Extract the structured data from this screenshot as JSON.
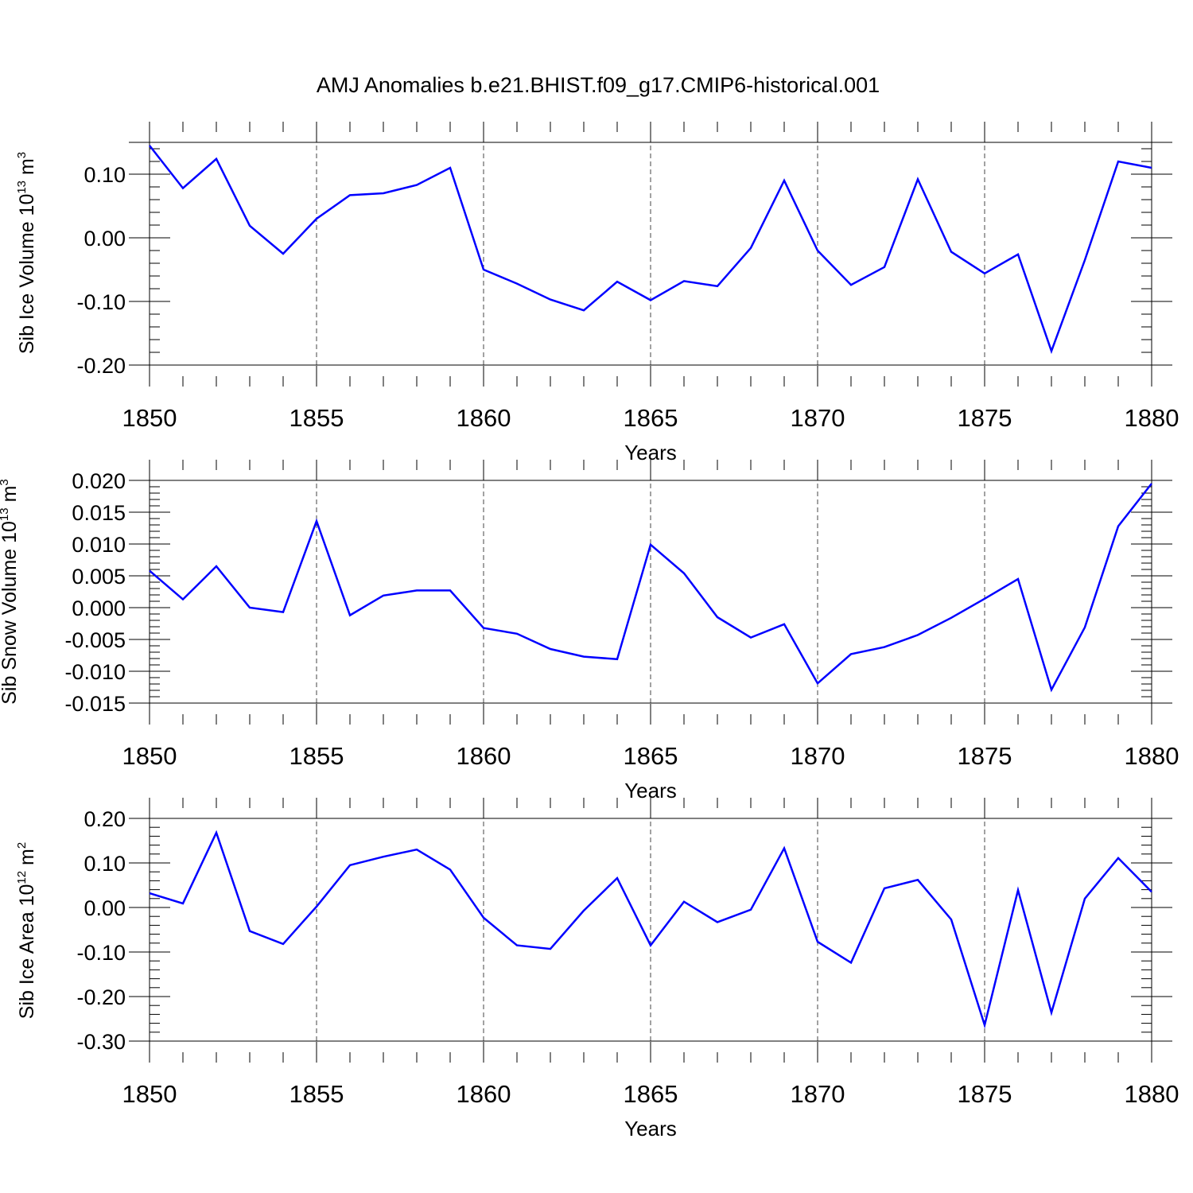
{
  "title": "AMJ Anomalies b.e21.BHIST.f09_g17.CMIP6-historical.001",
  "line_color": "#0000ff",
  "chart_data": [
    {
      "type": "line",
      "ylabel": "Sib Ice Volume 10",
      "ylabel_exp": "13",
      "ylabel_unit": " m",
      "ylabel_unit_exp": "3",
      "xlabel": "Years",
      "xlim": [
        1850,
        1880
      ],
      "ylim": [
        -0.2,
        0.15
      ],
      "x_ticks": [
        "1850",
        "1855",
        "1860",
        "1865",
        "1870",
        "1875",
        "1880"
      ],
      "y_ticks": [
        "0.10",
        "0.00",
        "-0.10",
        "-0.20"
      ],
      "y_tick_values": [
        0.1,
        0.0,
        -0.1,
        -0.2
      ],
      "y_minor_step": 0.02,
      "x": [
        1850,
        1851,
        1852,
        1853,
        1854,
        1855,
        1856,
        1857,
        1858,
        1859,
        1860,
        1861,
        1862,
        1863,
        1864,
        1865,
        1866,
        1867,
        1868,
        1869,
        1870,
        1871,
        1872,
        1873,
        1874,
        1875,
        1876,
        1877,
        1878,
        1879,
        1880
      ],
      "values": [
        0.145,
        0.078,
        0.124,
        0.019,
        -0.025,
        0.03,
        0.067,
        0.07,
        0.083,
        0.11,
        -0.05,
        -0.072,
        -0.097,
        -0.114,
        -0.069,
        -0.098,
        -0.068,
        -0.076,
        -0.016,
        0.09,
        -0.02,
        -0.074,
        -0.046,
        0.092,
        -0.022,
        -0.056,
        -0.026,
        -0.178,
        -0.035,
        0.12,
        0.11
      ]
    },
    {
      "type": "line",
      "ylabel": "Sib Snow Volume 10",
      "ylabel_exp": "13",
      "ylabel_unit": " m",
      "ylabel_unit_exp": "3",
      "xlabel": "Years",
      "xlim": [
        1850,
        1880
      ],
      "ylim": [
        -0.015,
        0.02
      ],
      "x_ticks": [
        "1850",
        "1855",
        "1860",
        "1865",
        "1870",
        "1875",
        "1880"
      ],
      "y_ticks": [
        "0.020",
        "0.015",
        "0.010",
        "0.005",
        "0.000",
        "-0.005",
        "-0.010",
        "-0.015"
      ],
      "y_tick_values": [
        0.02,
        0.015,
        0.01,
        0.005,
        0.0,
        -0.005,
        -0.01,
        -0.015
      ],
      "y_minor_step": 0.001,
      "x": [
        1850,
        1851,
        1852,
        1853,
        1854,
        1855,
        1856,
        1857,
        1858,
        1859,
        1860,
        1861,
        1862,
        1863,
        1864,
        1865,
        1866,
        1867,
        1868,
        1869,
        1870,
        1871,
        1872,
        1873,
        1874,
        1875,
        1876,
        1877,
        1878,
        1879,
        1880
      ],
      "values": [
        0.0058,
        0.0013,
        0.0065,
        0.0,
        -0.0007,
        0.0136,
        -0.0012,
        0.0019,
        0.0027,
        0.0027,
        -0.0032,
        -0.0041,
        -0.0065,
        -0.0077,
        -0.0081,
        0.0099,
        0.0054,
        -0.0015,
        -0.0047,
        -0.0026,
        -0.0119,
        -0.0073,
        -0.0062,
        -0.0043,
        -0.0016,
        0.0014,
        0.0045,
        -0.0129,
        -0.0031,
        0.0128,
        0.0195
      ]
    },
    {
      "type": "line",
      "ylabel": "Sib Ice Area 10",
      "ylabel_exp": "12",
      "ylabel_unit": " m",
      "ylabel_unit_exp": "2",
      "xlabel": "Years",
      "xlim": [
        1850,
        1880
      ],
      "ylim": [
        -0.3,
        0.2
      ],
      "x_ticks": [
        "1850",
        "1855",
        "1860",
        "1865",
        "1870",
        "1875",
        "1880"
      ],
      "y_ticks": [
        "0.20",
        "0.10",
        "0.00",
        "-0.10",
        "-0.20",
        "-0.30"
      ],
      "y_tick_values": [
        0.2,
        0.1,
        0.0,
        -0.1,
        -0.2,
        -0.3
      ],
      "y_minor_step": 0.02,
      "x": [
        1850,
        1851,
        1852,
        1853,
        1854,
        1855,
        1856,
        1857,
        1858,
        1859,
        1860,
        1861,
        1862,
        1863,
        1864,
        1865,
        1866,
        1867,
        1868,
        1869,
        1870,
        1871,
        1872,
        1873,
        1874,
        1875,
        1876,
        1877,
        1878,
        1879,
        1880
      ],
      "values": [
        0.032,
        0.009,
        0.168,
        -0.053,
        -0.082,
        0.002,
        0.095,
        0.114,
        0.13,
        0.085,
        -0.023,
        -0.085,
        -0.093,
        -0.007,
        0.066,
        -0.085,
        0.013,
        -0.033,
        -0.005,
        0.133,
        -0.077,
        -0.124,
        0.043,
        0.062,
        -0.027,
        -0.264,
        0.039,
        -0.236,
        0.02,
        0.111,
        0.035
      ]
    }
  ]
}
